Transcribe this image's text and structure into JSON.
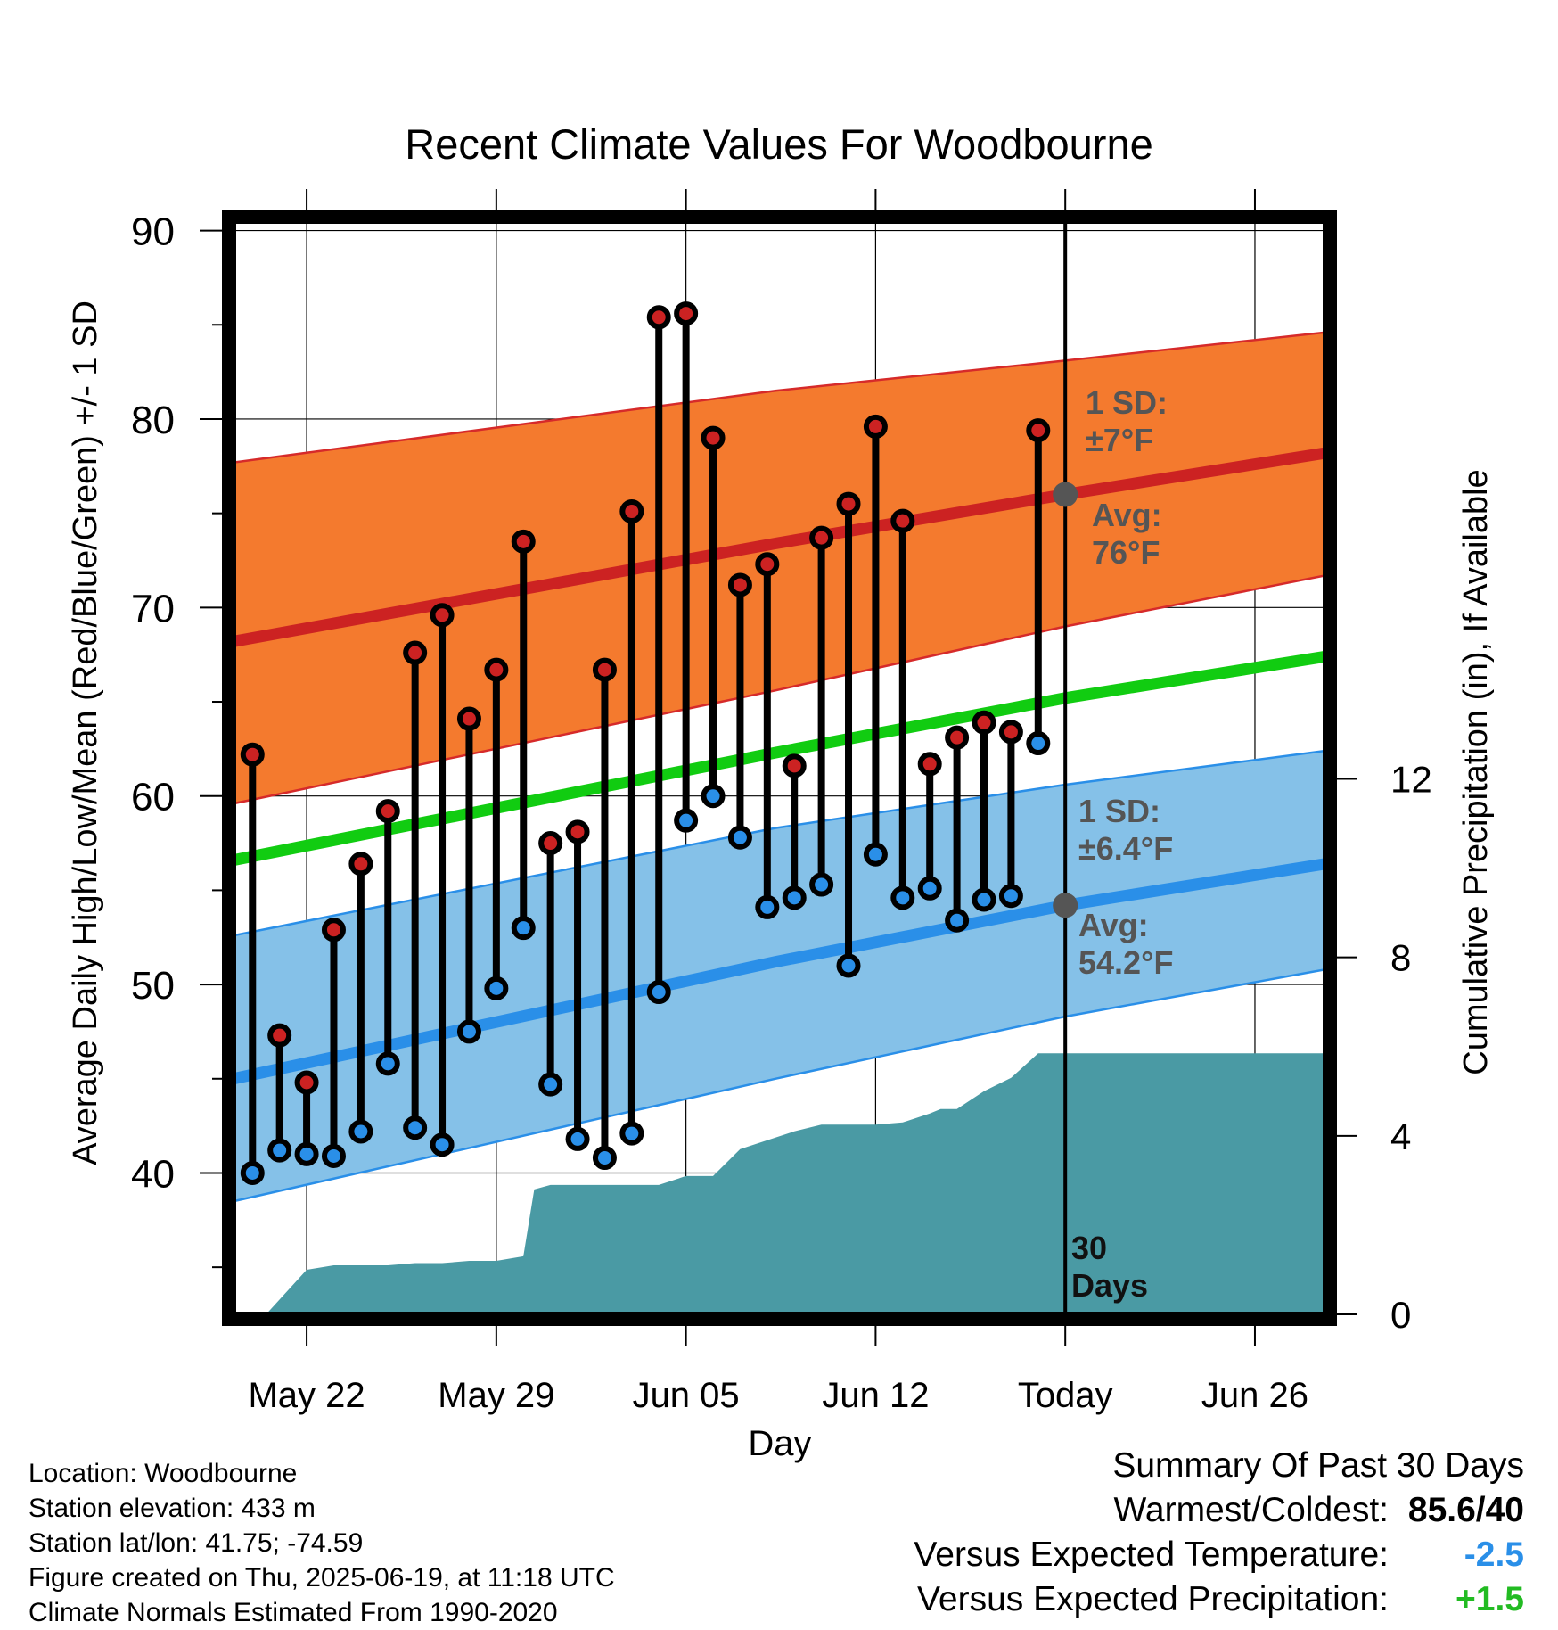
{
  "chart_data": {
    "type": "line",
    "title": "Recent Climate Values For Woodbourne",
    "xlabel": "Day",
    "ylabel": "Average Daily High/Low/Mean (Red/Blue/Green) +/- 1 SD",
    "y2label": "Cumulative Precipitation (in), If Available",
    "ylim": [
      32.5,
      90.5
    ],
    "y2lim": [
      0,
      24.5
    ],
    "yticks": [
      40,
      50,
      60,
      70,
      80,
      90
    ],
    "y2ticks": [
      0,
      4,
      8,
      12
    ],
    "x_tick_labels": [
      {
        "day": 3,
        "label": "May 22"
      },
      {
        "day": 10,
        "label": "May 29"
      },
      {
        "day": 17,
        "label": "Jun 05"
      },
      {
        "day": 24,
        "label": "Jun 12"
      },
      {
        "day": 31,
        "label": "Today"
      },
      {
        "day": 38,
        "label": "Jun 26"
      }
    ],
    "grid": true,
    "xlim": [
      0.3,
      40.6
    ],
    "today_day": 31,
    "today_label": "30\nDays",
    "normals": {
      "days": [
        0.3,
        20.3,
        31,
        40.6
      ],
      "high_avg": [
        68.2,
        73.4,
        76,
        78.2
      ],
      "high_upper": [
        77.7,
        81.5,
        83.1,
        84.6
      ],
      "high_lower": [
        59.6,
        65.6,
        69,
        71.7
      ],
      "low_avg": [
        45,
        51.2,
        54.2,
        56.4
      ],
      "low_upper": [
        52.6,
        58.3,
        60.6,
        62.4
      ],
      "low_lower": [
        38.5,
        45,
        48.3,
        50.8
      ],
      "mean_avg": [
        56.6,
        62.3,
        65.2,
        67.4
      ]
    },
    "high_sd_label": [
      "1 SD:",
      "±7°F"
    ],
    "high_avg_label": [
      "Avg:",
      "76°F"
    ],
    "low_sd_label": [
      "1 SD:",
      "±6.4°F"
    ],
    "low_avg_label": [
      "Avg:",
      "54.2°F"
    ],
    "series": [
      {
        "name": "High",
        "color": "#cc2222",
        "days": [
          1,
          2,
          3,
          4,
          5,
          6,
          7,
          8,
          9,
          10,
          11,
          12,
          13,
          14,
          15,
          16,
          17,
          18,
          19,
          20,
          21,
          22,
          23,
          24,
          25,
          26,
          27,
          28,
          29,
          30
        ],
        "values": [
          62.2,
          47.3,
          44.8,
          52.9,
          56.4,
          59.2,
          67.6,
          69.6,
          64.1,
          66.7,
          73.5,
          57.5,
          58.1,
          66.7,
          75.1,
          85.4,
          85.6,
          79,
          71.2,
          72.3,
          61.6,
          73.7,
          75.5,
          79.6,
          74.6,
          61.7,
          63.1,
          63.9,
          63.4,
          79.4
        ]
      },
      {
        "name": "Low",
        "color": "#2a8fe8",
        "days": [
          1,
          2,
          3,
          4,
          5,
          6,
          7,
          8,
          9,
          10,
          11,
          12,
          13,
          14,
          15,
          16,
          17,
          18,
          19,
          20,
          21,
          22,
          23,
          24,
          25,
          26,
          27,
          28,
          29,
          30
        ],
        "values": [
          40,
          41.2,
          41,
          40.9,
          42.2,
          45.8,
          42.4,
          41.5,
          47.5,
          49.8,
          53,
          44.7,
          41.8,
          40.8,
          42.1,
          49.6,
          58.7,
          60,
          57.8,
          54.1,
          54.6,
          55.3,
          51,
          56.9,
          54.6,
          55.1,
          53.4,
          54.5,
          54.7,
          62.8
        ]
      },
      {
        "name": "Cumulative Precipitation",
        "color": "#4a9aa4",
        "days": [
          1.5,
          3,
          4,
          6,
          7,
          8,
          9,
          10,
          11,
          11.4,
          12,
          13,
          14,
          15,
          16,
          17,
          17.5,
          18,
          19,
          20,
          21,
          22,
          23,
          24,
          25,
          26,
          26.4,
          27,
          28,
          29,
          30,
          31,
          40.6
        ],
        "values": [
          0,
          1,
          1.1,
          1.1,
          1.15,
          1.15,
          1.2,
          1.2,
          1.3,
          2.8,
          2.9,
          2.9,
          2.9,
          2.9,
          2.9,
          3.1,
          3.1,
          3.1,
          3.7,
          3.9,
          4.1,
          4.25,
          4.25,
          4.25,
          4.3,
          4.5,
          4.6,
          4.6,
          5,
          5.3,
          5.85,
          5.85,
          5.85
        ]
      }
    ]
  },
  "info": {
    "location": "Location: Woodbourne",
    "elevation": "Station elevation: 433 m",
    "latlon": "Station lat/lon: 41.75; -74.59",
    "created": "Figure created on Thu, 2025-06-19, at 11:18 UTC",
    "normals": "Climate Normals Estimated From 1990-2020"
  },
  "summary": {
    "title": "Summary Of Past 30 Days",
    "warmest_label": "Warmest/Coldest:",
    "warmest_value": "85.6/40",
    "temp_label": "Versus Expected Temperature:",
    "temp_value": "-2.5",
    "temp_color": "#2a8fe8",
    "precip_label": "Versus Expected Precipitation:",
    "precip_value": "+1.5",
    "precip_color": "#22bb22"
  },
  "colors": {
    "high_band": "#f47a2e",
    "high_line": "#cc2222",
    "low_band": "#85c1e8",
    "low_line": "#2a8fe8",
    "mean_line": "#11cc11",
    "precip": "#4a9aa4"
  }
}
